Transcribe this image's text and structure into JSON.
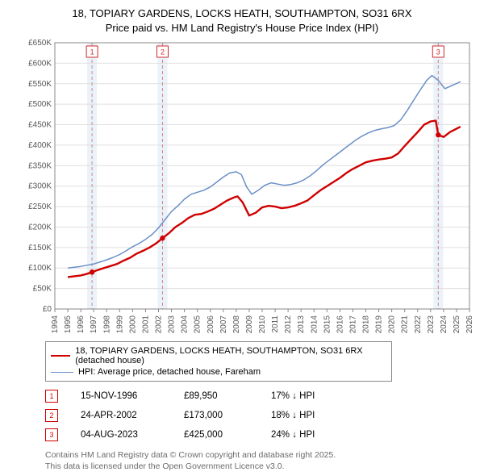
{
  "title": {
    "line1": "18, TOPIARY GARDENS, LOCKS HEATH, SOUTHAMPTON, SO31 6RX",
    "line2": "Price paid vs. HM Land Registry's House Price Index (HPI)"
  },
  "chart": {
    "type": "line",
    "background_color": "#ffffff",
    "plot_border_color": "#888888",
    "grid_color": "#e0e0e0",
    "sale_band_color": "#eaf2fa",
    "sale_line_color": "#d02828",
    "sale_line_dash": "4 3",
    "x": {
      "min": 1994,
      "max": 2026,
      "ticks": [
        1994,
        1995,
        1996,
        1997,
        1998,
        1999,
        2000,
        2001,
        2002,
        2003,
        2004,
        2005,
        2006,
        2007,
        2008,
        2009,
        2010,
        2011,
        2012,
        2013,
        2014,
        2015,
        2016,
        2017,
        2018,
        2019,
        2020,
        2021,
        2022,
        2023,
        2024,
        2025,
        2026
      ]
    },
    "y": {
      "min": 0,
      "max": 650,
      "ticks": [
        0,
        50,
        100,
        150,
        200,
        250,
        300,
        350,
        400,
        450,
        500,
        550,
        600,
        650
      ],
      "tick_labels": [
        "£0",
        "£50K",
        "£100K",
        "£150K",
        "£200K",
        "£250K",
        "£300K",
        "£350K",
        "£400K",
        "£450K",
        "£500K",
        "£550K",
        "£600K",
        "£650K"
      ]
    },
    "series": [
      {
        "id": "property",
        "label": "18, TOPIARY GARDENS, LOCKS HEATH, SOUTHAMPTON, SO31 6RX (detached house)",
        "color": "#d00000",
        "width": 2.4,
        "points": [
          [
            1995.0,
            78
          ],
          [
            1995.5,
            80
          ],
          [
            1996.0,
            82
          ],
          [
            1996.4,
            85
          ],
          [
            1996.87,
            90
          ],
          [
            1997.3,
            95
          ],
          [
            1997.8,
            100
          ],
          [
            1998.3,
            105
          ],
          [
            1998.8,
            110
          ],
          [
            1999.3,
            118
          ],
          [
            1999.8,
            125
          ],
          [
            2000.3,
            135
          ],
          [
            2000.8,
            142
          ],
          [
            2001.3,
            150
          ],
          [
            2001.8,
            160
          ],
          [
            2002.31,
            173
          ],
          [
            2002.8,
            185
          ],
          [
            2003.3,
            200
          ],
          [
            2003.8,
            210
          ],
          [
            2004.3,
            222
          ],
          [
            2004.8,
            230
          ],
          [
            2005.3,
            232
          ],
          [
            2005.8,
            238
          ],
          [
            2006.3,
            245
          ],
          [
            2006.8,
            255
          ],
          [
            2007.3,
            265
          ],
          [
            2007.8,
            272
          ],
          [
            2008.1,
            275
          ],
          [
            2008.5,
            260
          ],
          [
            2009.0,
            228
          ],
          [
            2009.5,
            235
          ],
          [
            2010.0,
            248
          ],
          [
            2010.5,
            252
          ],
          [
            2011.0,
            250
          ],
          [
            2011.5,
            246
          ],
          [
            2012.0,
            248
          ],
          [
            2012.5,
            252
          ],
          [
            2013.0,
            258
          ],
          [
            2013.5,
            265
          ],
          [
            2014.0,
            278
          ],
          [
            2014.5,
            290
          ],
          [
            2015.0,
            300
          ],
          [
            2015.5,
            310
          ],
          [
            2016.0,
            320
          ],
          [
            2016.5,
            332
          ],
          [
            2017.0,
            342
          ],
          [
            2017.5,
            350
          ],
          [
            2018.0,
            358
          ],
          [
            2018.5,
            362
          ],
          [
            2019.0,
            365
          ],
          [
            2019.5,
            367
          ],
          [
            2020.0,
            370
          ],
          [
            2020.5,
            380
          ],
          [
            2021.0,
            398
          ],
          [
            2021.5,
            415
          ],
          [
            2022.0,
            432
          ],
          [
            2022.5,
            450
          ],
          [
            2023.0,
            458
          ],
          [
            2023.4,
            460
          ],
          [
            2023.59,
            425
          ],
          [
            2024.0,
            420
          ],
          [
            2024.5,
            432
          ],
          [
            2025.0,
            440
          ],
          [
            2025.3,
            445
          ]
        ]
      },
      {
        "id": "hpi",
        "label": "HPI: Average price, detached house, Fareham",
        "color": "#6a8fc7",
        "width": 1.5,
        "points": [
          [
            1995.0,
            100
          ],
          [
            1995.5,
            102
          ],
          [
            1996.0,
            104
          ],
          [
            1996.5,
            107
          ],
          [
            1997.0,
            110
          ],
          [
            1997.5,
            115
          ],
          [
            1998.0,
            120
          ],
          [
            1998.5,
            126
          ],
          [
            1999.0,
            133
          ],
          [
            1999.5,
            142
          ],
          [
            2000.0,
            152
          ],
          [
            2000.5,
            160
          ],
          [
            2001.0,
            170
          ],
          [
            2001.5,
            182
          ],
          [
            2002.0,
            198
          ],
          [
            2002.5,
            218
          ],
          [
            2003.0,
            238
          ],
          [
            2003.5,
            252
          ],
          [
            2004.0,
            268
          ],
          [
            2004.5,
            280
          ],
          [
            2005.0,
            285
          ],
          [
            2005.5,
            290
          ],
          [
            2006.0,
            298
          ],
          [
            2006.5,
            310
          ],
          [
            2007.0,
            322
          ],
          [
            2007.5,
            332
          ],
          [
            2008.0,
            335
          ],
          [
            2008.4,
            328
          ],
          [
            2008.8,
            298
          ],
          [
            2009.2,
            280
          ],
          [
            2009.7,
            290
          ],
          [
            2010.2,
            302
          ],
          [
            2010.7,
            308
          ],
          [
            2011.2,
            305
          ],
          [
            2011.7,
            302
          ],
          [
            2012.2,
            304
          ],
          [
            2012.7,
            308
          ],
          [
            2013.2,
            315
          ],
          [
            2013.7,
            325
          ],
          [
            2014.2,
            338
          ],
          [
            2014.7,
            352
          ],
          [
            2015.2,
            364
          ],
          [
            2015.7,
            376
          ],
          [
            2016.2,
            388
          ],
          [
            2016.7,
            400
          ],
          [
            2017.2,
            412
          ],
          [
            2017.7,
            422
          ],
          [
            2018.2,
            430
          ],
          [
            2018.7,
            436
          ],
          [
            2019.2,
            440
          ],
          [
            2019.7,
            443
          ],
          [
            2020.2,
            448
          ],
          [
            2020.7,
            462
          ],
          [
            2021.2,
            485
          ],
          [
            2021.7,
            510
          ],
          [
            2022.2,
            535
          ],
          [
            2022.7,
            558
          ],
          [
            2023.1,
            570
          ],
          [
            2023.6,
            558
          ],
          [
            2024.1,
            538
          ],
          [
            2024.6,
            545
          ],
          [
            2025.1,
            552
          ],
          [
            2025.3,
            555
          ]
        ]
      }
    ],
    "sale_markers": [
      {
        "n": "1",
        "year": 1996.87
      },
      {
        "n": "2",
        "year": 2002.31
      },
      {
        "n": "3",
        "year": 2023.59
      }
    ],
    "property_sale_dots": [
      {
        "year": 1996.87,
        "value": 90
      },
      {
        "year": 2002.31,
        "value": 173
      },
      {
        "year": 2023.59,
        "value": 425
      }
    ]
  },
  "legend": {
    "border_color": "#888888",
    "items": [
      {
        "color": "#d00000",
        "label": "18, TOPIARY GARDENS, LOCKS HEATH, SOUTHAMPTON, SO31 6RX (detached house)",
        "width": 2.4
      },
      {
        "color": "#6a8fc7",
        "label": "HPI: Average price, detached house, Fareham",
        "width": 1.5
      }
    ]
  },
  "sales": [
    {
      "n": "1",
      "date": "15-NOV-1996",
      "price": "£89,950",
      "hpi": "17% ↓ HPI"
    },
    {
      "n": "2",
      "date": "24-APR-2002",
      "price": "£173,000",
      "hpi": "18% ↓ HPI"
    },
    {
      "n": "3",
      "date": "04-AUG-2023",
      "price": "£425,000",
      "hpi": "24% ↓ HPI"
    }
  ],
  "sale_marker_border": "#d00000",
  "footnote": {
    "line1": "Contains HM Land Registry data © Crown copyright and database right 2025.",
    "line2": "This data is licensed under the Open Government Licence v3.0."
  }
}
